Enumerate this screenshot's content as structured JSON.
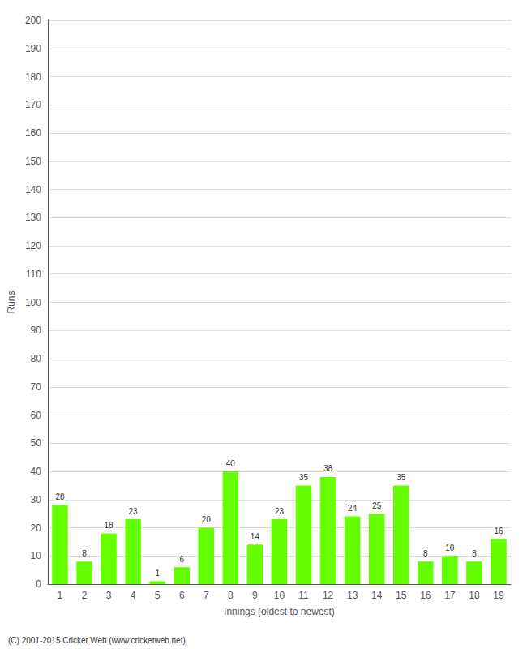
{
  "chart_data": {
    "type": "bar",
    "xlabel": "Innings (oldest to newest)",
    "ylabel": "Runs",
    "categories": [
      "1",
      "2",
      "3",
      "4",
      "5",
      "6",
      "7",
      "8",
      "9",
      "10",
      "11",
      "12",
      "13",
      "14",
      "15",
      "16",
      "17",
      "18",
      "19"
    ],
    "values": [
      28,
      8,
      18,
      23,
      1,
      6,
      20,
      40,
      14,
      23,
      35,
      38,
      24,
      25,
      35,
      8,
      10,
      8,
      16
    ],
    "color": "#66ff00",
    "ylim": [
      0,
      200
    ],
    "yticks": [
      0,
      10,
      20,
      30,
      40,
      50,
      60,
      70,
      80,
      90,
      100,
      110,
      120,
      130,
      140,
      150,
      160,
      170,
      180,
      190,
      200
    ],
    "grid": true,
    "data_labels": true,
    "annotations": [
      "(C) 2001-2015 Cricket Web (www.cricketweb.net)"
    ]
  }
}
